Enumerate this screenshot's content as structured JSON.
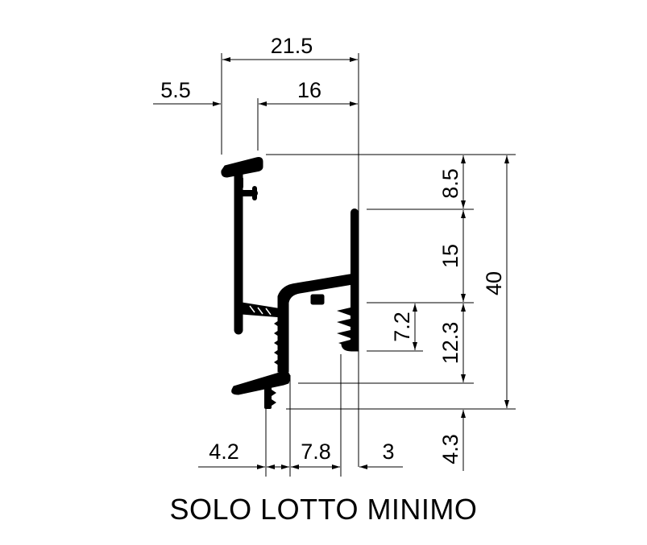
{
  "dimensions": {
    "overall_width": "21.5",
    "left_offset": "5.5",
    "top_width": "16",
    "top_gap": "8.5",
    "upper_height": "15",
    "total_height": "40",
    "tooth_height": "7.2",
    "mid_height": "12.3",
    "bottom_height": "4.3",
    "bottom_left": "4.2",
    "bottom_middle": "7.8",
    "bottom_right": "3"
  },
  "caption": "SOLO LOTTO MINIMO"
}
